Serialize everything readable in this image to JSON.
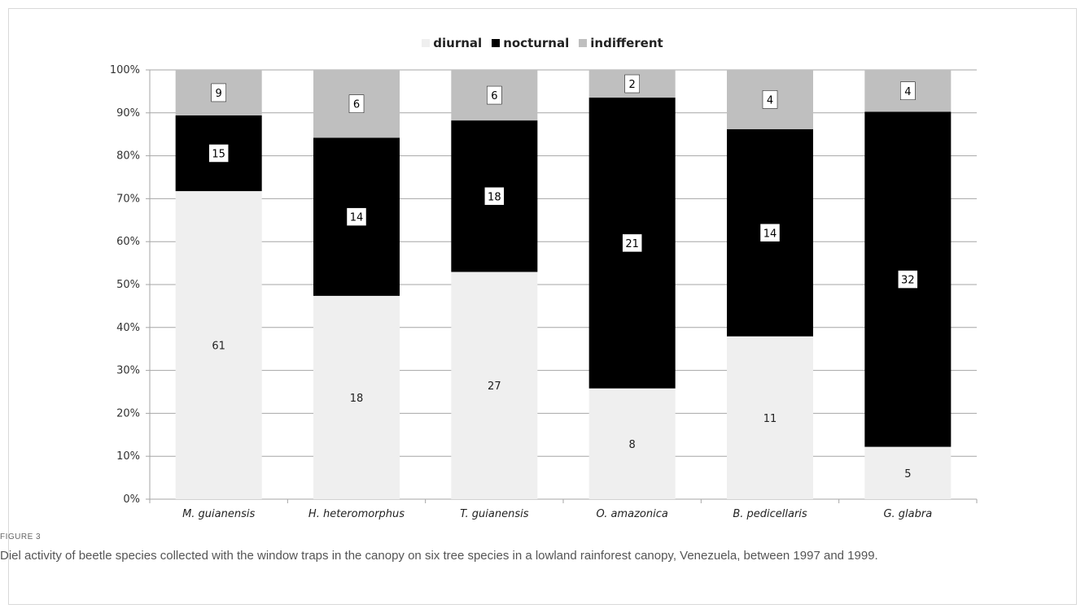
{
  "colors": {
    "diurnal": "#efefef",
    "nocturnal": "#000000",
    "indifferent": "#bfbfbf",
    "grid": "#a6a6a6"
  },
  "chart_data": {
    "type": "bar",
    "stacked": true,
    "normalized": true,
    "categories": [
      "M. guianensis",
      "H. heteromorphus",
      "T. guianensis",
      "O. amazonica",
      "B. pedicellaris",
      "G. glabra"
    ],
    "series": [
      {
        "name": "diurnal",
        "values": [
          61,
          18,
          27,
          8,
          11,
          5
        ]
      },
      {
        "name": "nocturnal",
        "values": [
          15,
          14,
          18,
          21,
          14,
          32
        ]
      },
      {
        "name": "indifferent",
        "values": [
          9,
          6,
          6,
          2,
          4,
          4
        ]
      }
    ],
    "y_ticks": [
      "0%",
      "10%",
      "20%",
      "30%",
      "40%",
      "50%",
      "60%",
      "70%",
      "80%",
      "90%",
      "100%"
    ],
    "ylim": [
      0,
      100
    ],
    "grid": true,
    "legend": "top-center"
  },
  "figure": {
    "label": "FIGURE 3",
    "caption": "Diel activity of beetle species collected with the window traps in the canopy on six tree species in a lowland rainforest canopy, Venezuela, between 1997 and 1999."
  }
}
